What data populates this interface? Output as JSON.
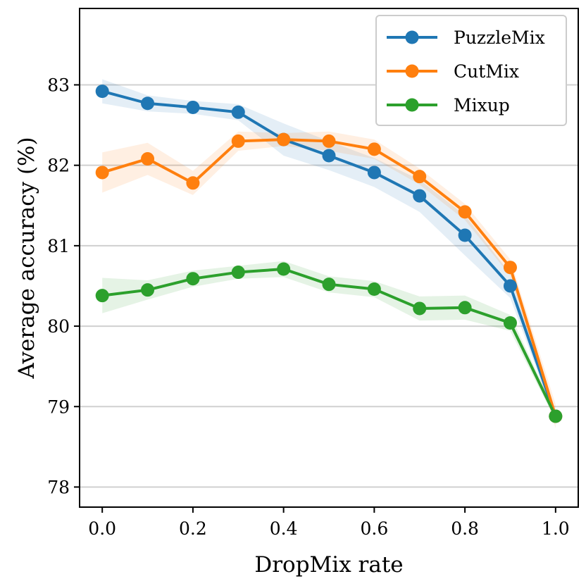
{
  "chart_data": {
    "type": "line",
    "title": "",
    "xlabel": "DropMix rate",
    "ylabel": "Average accuracy (%)",
    "xlim": [
      -0.05,
      1.05
    ],
    "ylim": [
      77.75,
      83.95
    ],
    "xticks": [
      0.0,
      0.2,
      0.4,
      0.6,
      0.8,
      1.0
    ],
    "xtick_labels": [
      "0.0",
      "0.2",
      "0.4",
      "0.6",
      "0.8",
      "1.0"
    ],
    "yticks": [
      78,
      79,
      80,
      81,
      82,
      83
    ],
    "ytick_labels": [
      "78",
      "79",
      "80",
      "81",
      "82",
      "83"
    ],
    "grid": "horizontal",
    "legend_position": "top-right",
    "x": [
      0.0,
      0.1,
      0.2,
      0.3,
      0.4,
      0.5,
      0.6,
      0.7,
      0.8,
      0.9,
      1.0
    ],
    "series": [
      {
        "name": "PuzzleMix",
        "color": "#1f77b4",
        "values": [
          82.92,
          82.77,
          82.72,
          82.66,
          82.32,
          82.12,
          81.91,
          81.62,
          81.13,
          80.5,
          78.88
        ],
        "band": [
          0.15,
          0.1,
          0.08,
          0.1,
          0.2,
          0.18,
          0.18,
          0.2,
          0.25,
          0.15,
          0.05
        ]
      },
      {
        "name": "CutMix",
        "color": "#ff7f0e",
        "values": [
          81.91,
          82.08,
          81.78,
          82.3,
          82.32,
          82.3,
          82.2,
          81.86,
          81.42,
          80.73,
          78.88
        ],
        "band": [
          0.25,
          0.2,
          0.15,
          0.12,
          0.08,
          0.12,
          0.12,
          0.1,
          0.1,
          0.1,
          0.15
        ]
      },
      {
        "name": "Mixup",
        "color": "#2ca02c",
        "values": [
          80.38,
          80.45,
          80.59,
          80.67,
          80.71,
          80.52,
          80.46,
          80.22,
          80.23,
          80.04,
          78.88
        ],
        "band": [
          0.22,
          0.12,
          0.1,
          0.08,
          0.1,
          0.1,
          0.1,
          0.15,
          0.15,
          0.1,
          0.05
        ]
      }
    ]
  }
}
